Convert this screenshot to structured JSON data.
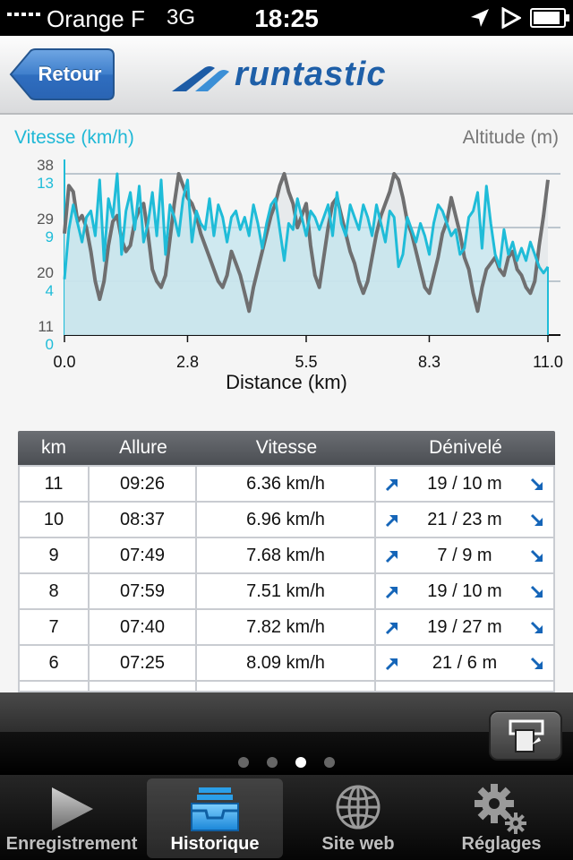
{
  "status_bar": {
    "carrier": "Orange F",
    "network": "3G",
    "time": "18:25",
    "battery_level": 0.9
  },
  "nav": {
    "back_label": "Retour",
    "logo_text": "runtastic"
  },
  "chart_data": {
    "type": "line",
    "title": "",
    "left_axis_title": "Vitesse (km/h)",
    "right_axis_title": "Altitude (m)",
    "xlabel": "Distance (km)",
    "xlim": [
      0,
      11
    ],
    "x_ticks": [
      "0.0",
      "2.8",
      "5.5",
      "8.3",
      "11.0"
    ],
    "altitude_ticks": [
      "38",
      "29",
      "20",
      "11"
    ],
    "speed_ticks": [
      "13",
      "9",
      "4",
      "0"
    ],
    "altitude_ylim": [
      11,
      38
    ],
    "speed_ylim": [
      0,
      13
    ],
    "grid": true,
    "series": [
      {
        "name": "Vitesse (km/h)",
        "axis": "speed",
        "color": "#1fbcd8",
        "x": [
          0.0,
          0.1,
          0.2,
          0.3,
          0.4,
          0.5,
          0.6,
          0.7,
          0.8,
          0.9,
          1.0,
          1.1,
          1.2,
          1.3,
          1.4,
          1.5,
          1.6,
          1.7,
          1.8,
          1.9,
          2.0,
          2.1,
          2.2,
          2.3,
          2.4,
          2.5,
          2.6,
          2.7,
          2.8,
          2.9,
          3.0,
          3.1,
          3.2,
          3.3,
          3.4,
          3.5,
          3.6,
          3.7,
          3.8,
          3.9,
          4.0,
          4.1,
          4.2,
          4.3,
          4.4,
          4.5,
          4.6,
          4.7,
          4.8,
          4.9,
          5.0,
          5.1,
          5.2,
          5.3,
          5.4,
          5.5,
          5.6,
          5.7,
          5.8,
          5.9,
          6.0,
          6.1,
          6.2,
          6.3,
          6.4,
          6.5,
          6.6,
          6.7,
          6.8,
          6.9,
          7.0,
          7.1,
          7.2,
          7.3,
          7.4,
          7.5,
          7.6,
          7.7,
          7.8,
          7.9,
          8.0,
          8.1,
          8.2,
          8.3,
          8.4,
          8.5,
          8.6,
          8.7,
          8.8,
          8.9,
          9.0,
          9.1,
          9.2,
          9.3,
          9.4,
          9.5,
          9.6,
          9.7,
          9.8,
          9.9,
          10.0,
          10.1,
          10.2,
          10.3,
          10.4,
          10.5,
          10.6,
          10.7,
          10.8,
          10.9,
          11.0
        ],
        "values": [
          4.5,
          8.5,
          10.5,
          9.0,
          7.5,
          9.5,
          10.0,
          8.0,
          12.5,
          6.0,
          11.0,
          9.5,
          13.0,
          6.5,
          10.0,
          11.5,
          8.5,
          12.0,
          7.5,
          9.0,
          11.5,
          8.0,
          12.5,
          6.5,
          10.5,
          9.5,
          8.0,
          11.0,
          12.5,
          7.5,
          10.0,
          9.0,
          8.5,
          11.0,
          8.0,
          10.5,
          9.5,
          7.5,
          9.5,
          10.0,
          8.5,
          9.5,
          8.0,
          10.5,
          9.0,
          7.0,
          9.0,
          10.5,
          11.0,
          8.5,
          6.0,
          9.0,
          8.5,
          11.0,
          9.5,
          8.0,
          10.0,
          9.5,
          8.5,
          9.5,
          10.5,
          8.0,
          11.5,
          9.0,
          8.0,
          10.5,
          9.5,
          8.5,
          10.5,
          9.5,
          8.0,
          10.5,
          9.0,
          7.5,
          10.0,
          9.5,
          5.5,
          6.5,
          9.5,
          8.5,
          7.5,
          9.0,
          8.0,
          6.5,
          9.0,
          10.5,
          10.0,
          9.0,
          8.0,
          8.5,
          6.5,
          7.0,
          9.5,
          10.0,
          11.5,
          7.0,
          12.0,
          9.0,
          6.5,
          5.5,
          8.5,
          6.5,
          7.5,
          6.0,
          7.0,
          6.0,
          7.5,
          6.5,
          5.5,
          5.0,
          5.5
        ]
      },
      {
        "name": "Altitude (m)",
        "axis": "altitude",
        "color": "#6f6f70",
        "x": [
          0.0,
          0.1,
          0.2,
          0.3,
          0.4,
          0.5,
          0.6,
          0.7,
          0.8,
          0.9,
          1.0,
          1.1,
          1.2,
          1.3,
          1.4,
          1.5,
          1.6,
          1.7,
          1.8,
          1.9,
          2.0,
          2.1,
          2.2,
          2.3,
          2.4,
          2.5,
          2.6,
          2.7,
          2.8,
          2.9,
          3.0,
          3.1,
          3.2,
          3.3,
          3.4,
          3.5,
          3.6,
          3.7,
          3.8,
          3.9,
          4.0,
          4.1,
          4.2,
          4.3,
          4.4,
          4.5,
          4.6,
          4.7,
          4.8,
          4.9,
          5.0,
          5.1,
          5.2,
          5.3,
          5.4,
          5.5,
          5.6,
          5.7,
          5.8,
          5.9,
          6.0,
          6.1,
          6.2,
          6.3,
          6.4,
          6.5,
          6.6,
          6.7,
          6.8,
          6.9,
          7.0,
          7.1,
          7.2,
          7.3,
          7.4,
          7.5,
          7.6,
          7.7,
          7.8,
          7.9,
          8.0,
          8.1,
          8.2,
          8.3,
          8.4,
          8.5,
          8.6,
          8.7,
          8.8,
          8.9,
          9.0,
          9.1,
          9.2,
          9.3,
          9.4,
          9.5,
          9.6,
          9.7,
          9.8,
          9.9,
          10.0,
          10.1,
          10.2,
          10.3,
          10.4,
          10.5,
          10.6,
          10.7,
          10.8,
          10.9,
          11.0
        ],
        "values": [
          28,
          36,
          35,
          30,
          31,
          29,
          25,
          20,
          17,
          20,
          26,
          30,
          31,
          27,
          25,
          26,
          30,
          32,
          33,
          28,
          22,
          20,
          19,
          21,
          27,
          33,
          38,
          36,
          34,
          33,
          31,
          28,
          26,
          24,
          22,
          20,
          19,
          21,
          25,
          23,
          21,
          18,
          15,
          19,
          22,
          25,
          28,
          31,
          33,
          36,
          38,
          35,
          33,
          29,
          31,
          33,
          26,
          21,
          19,
          24,
          29,
          33,
          34,
          31,
          28,
          25,
          23,
          20,
          18,
          20,
          24,
          28,
          31,
          33,
          35,
          38,
          37,
          34,
          30,
          28,
          25,
          22,
          19,
          18,
          21,
          24,
          28,
          30,
          34,
          31,
          28,
          24,
          22,
          18,
          15,
          19,
          22,
          23,
          24,
          22,
          21,
          24,
          25,
          22,
          21,
          19,
          18,
          20,
          26,
          31,
          37
        ]
      }
    ]
  },
  "table": {
    "headers": [
      "km",
      "Allure",
      "Vitesse",
      "Dénivelé"
    ],
    "rows": [
      {
        "km": "11",
        "pace": "09:26",
        "speed": "6.36 km/h",
        "elevation": "19 / 10 m"
      },
      {
        "km": "10",
        "pace": "08:37",
        "speed": "6.96 km/h",
        "elevation": "21 / 23 m"
      },
      {
        "km": "9",
        "pace": "07:49",
        "speed": "7.68 km/h",
        "elevation": "7 / 9 m"
      },
      {
        "km": "8",
        "pace": "07:59",
        "speed": "7.51 km/h",
        "elevation": "19 / 10 m"
      },
      {
        "km": "7",
        "pace": "07:40",
        "speed": "7.82 km/h",
        "elevation": "19 / 27 m"
      },
      {
        "km": "6",
        "pace": "07:25",
        "speed": "8.09 km/h",
        "elevation": "21 / 6 m"
      }
    ],
    "up_icon": "arrow-up-right-icon",
    "down_icon": "arrow-down-right-icon",
    "arrow_color": "#1565b8"
  },
  "pager": {
    "count": 4,
    "active": 2
  },
  "tabs": [
    {
      "label": "Enregistrement",
      "icon": "play-icon"
    },
    {
      "label": "Historique",
      "icon": "inbox-tray-icon"
    },
    {
      "label": "Site web",
      "icon": "globe-icon"
    },
    {
      "label": "Réglages",
      "icon": "gears-icon"
    }
  ],
  "active_tab": 1
}
